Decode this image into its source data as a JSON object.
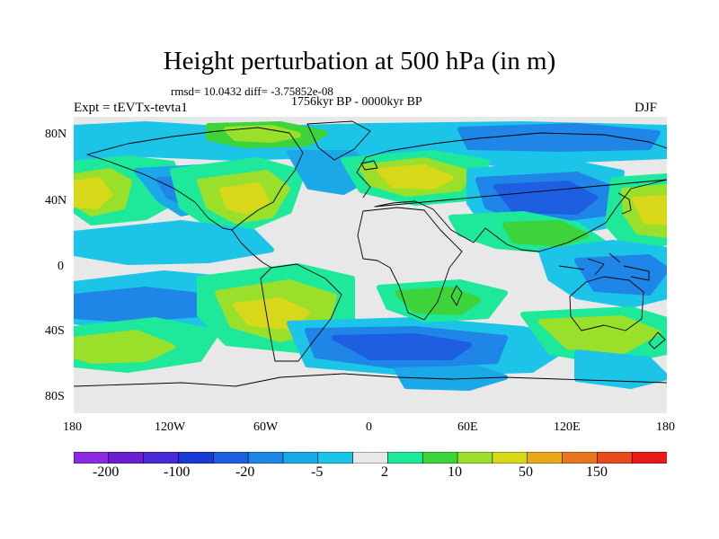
{
  "title": "Height perturbation at 500 hPa (in m)",
  "stats": "rmsd= 10.0432 diff= -3.75852e-08",
  "period": "1756kyr BP - 0000kyr BP",
  "experiment": "Expt = tEVTx-tevta1",
  "season": "DJF",
  "lat_ticks": [
    "80N",
    "40N",
    "0",
    "40S",
    "80S"
  ],
  "lon_ticks": [
    "180",
    "120W",
    "60W",
    "0",
    "60E",
    "120E",
    "180"
  ],
  "colorbar": {
    "colors": [
      "#8a2be2",
      "#6a1fd0",
      "#4a2ad8",
      "#1a3ad8",
      "#1e5ee0",
      "#1f86e8",
      "#1aa8e8",
      "#1cc4e8",
      "#e8e8e8",
      "#1ee89a",
      "#3cd43a",
      "#9ae02a",
      "#d8d81a",
      "#e8a81a",
      "#e87820",
      "#e84a1a",
      "#e81a1a"
    ],
    "labels": [
      "-200",
      "-100",
      "-20",
      "-5",
      "2",
      "10",
      "50",
      "150"
    ]
  },
  "field": {
    "neutral": "#e8e8e8",
    "palette": {
      "n5": "#1a3ad8",
      "n4": "#1e5ee0",
      "n3": "#1f86e8",
      "n2": "#1aa8e8",
      "n1": "#1cc4e8",
      "p1": "#1ee89a",
      "p2": "#3cd43a",
      "p3": "#9ae02a",
      "p4": "#d8d81a",
      "p5": "#e8a81a"
    }
  }
}
